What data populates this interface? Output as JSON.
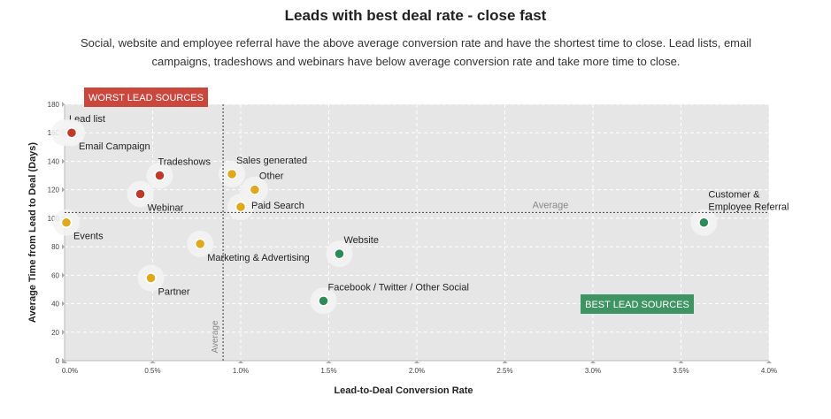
{
  "header": {
    "title": "Leads with best deal rate - close fast",
    "subtitle": "Social, website and employee referral have the above average conversion rate and have the shortest time to close. Lead lists, email campaigns, tradeshows and webinars have below average conversion rate and take more time to close."
  },
  "chart_data": {
    "type": "scatter",
    "xlabel": "Lead-to-Deal Conversion Rate",
    "ylabel": "Average Time from Lead to Deal (Days)",
    "xlim": [
      0,
      4
    ],
    "ylim": [
      0,
      180
    ],
    "x_ticks": [
      0,
      0.5,
      1.0,
      1.5,
      2.0,
      2.5,
      3.0,
      3.5,
      4.0
    ],
    "x_tick_labels": [
      "0.0%",
      "0.5%",
      "1.0%",
      "1.5%",
      "2.0%",
      "2.5%",
      "3.0%",
      "3.5%",
      "4.0%"
    ],
    "y_ticks": [
      0,
      20,
      40,
      60,
      80,
      100,
      120,
      140,
      160,
      180
    ],
    "y_tick_labels": [
      "0",
      "20",
      "40",
      "60",
      "80",
      "100",
      "120",
      "140",
      "160",
      "180"
    ],
    "grid": true,
    "avg_x": 0.9,
    "avg_y": 104,
    "avg_x_label": "Average",
    "avg_y_label": "Average",
    "worst_label": "WORST LEAD SOURCES",
    "best_label": "BEST LEAD SOURCES",
    "colors": {
      "red": "#c0392b",
      "yellow": "#e0a81c",
      "green": "#2e8b57",
      "worst_box": "#c9473d",
      "best_box": "#3e9462",
      "plot_bg": "#e6e6e6"
    },
    "points": [
      {
        "label": "Lead list",
        "x": 0.0,
        "y": 160,
        "color": "red",
        "label_anchor": "above-right"
      },
      {
        "label": "",
        "x": 0.04,
        "y": 160,
        "color": "red",
        "label_anchor": "none"
      },
      {
        "label": "Email Campaign",
        "x": 0.04,
        "y": 160,
        "color": "red",
        "label_anchor": "below-right"
      },
      {
        "label": "Tradeshows",
        "x": 0.54,
        "y": 130,
        "color": "red",
        "label_anchor": "above"
      },
      {
        "label": "Webinar",
        "x": 0.43,
        "y": 117,
        "color": "red",
        "label_anchor": "below-right"
      },
      {
        "label": "Events",
        "x": 0.01,
        "y": 97,
        "color": "yellow",
        "label_anchor": "below-right"
      },
      {
        "label": "Partner",
        "x": 0.49,
        "y": 58,
        "color": "yellow",
        "label_anchor": "below-right"
      },
      {
        "label": "Marketing & Advertising",
        "x": 0.77,
        "y": 82,
        "color": "yellow",
        "label_anchor": "below-right"
      },
      {
        "label": "Sales generated",
        "x": 0.95,
        "y": 131,
        "color": "yellow",
        "label_anchor": "above-right"
      },
      {
        "label": "Other",
        "x": 1.08,
        "y": 120,
        "color": "yellow",
        "label_anchor": "above-right"
      },
      {
        "label": "Paid Search",
        "x": 1.0,
        "y": 108,
        "color": "yellow",
        "label_anchor": "right"
      },
      {
        "label": "Website",
        "x": 1.56,
        "y": 75,
        "color": "green",
        "label_anchor": "above-right"
      },
      {
        "label": "Facebook / Twitter / Other Social",
        "x": 1.47,
        "y": 42,
        "color": "green",
        "label_anchor": "above-right"
      },
      {
        "label": "Customer & Employee Referral",
        "x": 3.63,
        "y": 97,
        "color": "green",
        "label_anchor": "above-right"
      }
    ]
  }
}
